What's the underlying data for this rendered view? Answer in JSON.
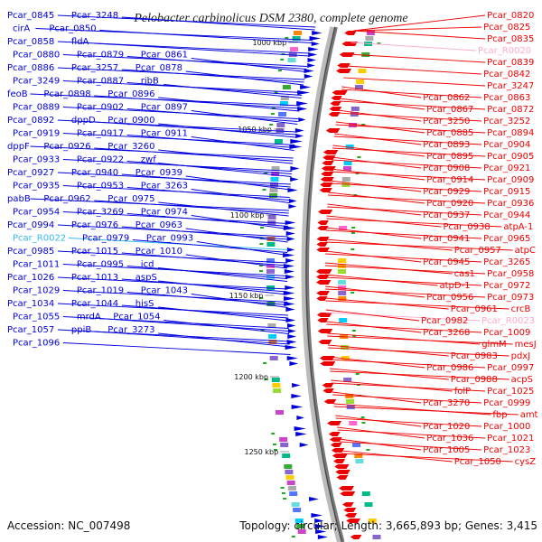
{
  "title": "Pelobacter carbinolicus DSM 2380, complete genome",
  "footer": {
    "accession": "Accession: NC_007498",
    "topology": "Topology: circular; Length: 3,665,893 bp; Genes: 3,415"
  },
  "kbp_marks": [
    "1000 kbp",
    "1050 kbp",
    "1100 kbp",
    "1150 kbp",
    "1200 kbp",
    "1250 kbp"
  ],
  "colors": {
    "forward": "#0000dd",
    "reverse": "#ee0000",
    "rna_fwd": "#33bbee",
    "rna_rev": "#ffaacc",
    "backbone": "#777777"
  },
  "left_labels": [
    "Pcar_0845",
    "Pcar_3248",
    "cirA",
    "Pcar_0850",
    "Pcar_0858",
    "fldA",
    "Pcar_0880",
    "Pcar_0879",
    "Pcar_0861",
    "Pcar_0886",
    "Pcar_3257",
    "Pcar_0878",
    "Pcar_3249",
    "Pcar_0887",
    "ribB",
    "feoB",
    "Pcar_0898",
    "Pcar_0896",
    "Pcar_0889",
    "Pcar_0902",
    "Pcar_0897",
    "Pcar_0892",
    "dppD",
    "Pcar_0900",
    "Pcar_0919",
    "Pcar_0917",
    "Pcar_0911",
    "dppF",
    "Pcar_0926",
    "Pcar_3260",
    "Pcar_0933",
    "Pcar_0922",
    "zwf",
    "Pcar_0927",
    "Pcar_0940",
    "Pcar_0939",
    "Pcar_0935",
    "Pcar_0953",
    "Pcar_3263",
    "pabB",
    "Pcar_0962",
    "Pcar_0975",
    "Pcar_0954",
    "Pcar_3269",
    "Pcar_0974",
    "Pcar_0994",
    "Pcar_0976",
    "Pcar_0963",
    "Pcar_R0022",
    "Pcar_0979",
    "Pcar_0993",
    "Pcar_0985",
    "Pcar_1015",
    "Pcar_1010",
    "Pcar_1011",
    "Pcar_0995",
    "icd",
    "Pcar_1026",
    "Pcar_1013",
    "aspS",
    "Pcar_1029",
    "Pcar_1019",
    "Pcar_1043",
    "Pcar_1034",
    "Pcar_1044",
    "hisS",
    "Pcar_1055",
    "mrdA",
    "Pcar_1054",
    "Pcar_1057",
    "ppiB",
    "Pcar_3273",
    "Pcar_1096"
  ],
  "right_labels": [
    "Pcar_0820",
    "Pcar_0825",
    "Pcar_0835",
    "Pcar_R0020",
    "Pcar_0839",
    "Pcar_0842",
    "Pcar_3247",
    "Pcar_0862",
    "Pcar_0863",
    "Pcar_0867",
    "Pcar_0872",
    "Pcar_3250",
    "Pcar_3252",
    "Pcar_0885",
    "Pcar_0894",
    "Pcar_0893",
    "Pcar_0904",
    "Pcar_0895",
    "Pcar_0905",
    "Pcar_0908",
    "Pcar_0921",
    "Pcar_0914",
    "Pcar_0909",
    "Pcar_0929",
    "Pcar_0915",
    "Pcar_0920",
    "Pcar_0936",
    "Pcar_0937",
    "Pcar_0944",
    "Pcar_0938",
    "atpA-1",
    "Pcar_0941",
    "Pcar_0965",
    "Pcar_0957",
    "atpC",
    "Pcar_0945",
    "Pcar_3265",
    "cas1",
    "Pcar_0958",
    "atpD-1",
    "Pcar_0972",
    "Pcar_0956",
    "Pcar_0973",
    "Pcar_0961",
    "crcB",
    "Pcar_0982",
    "Pcar_R0023",
    "Pcar_3268",
    "Pcar_1009",
    "glmM",
    "mesJ",
    "Pcar_0983",
    "pdxJ",
    "Pcar_0986",
    "Pcar_0997",
    "Pcar_0988",
    "acpS",
    "folP",
    "Pcar_1025",
    "Pcar_3270",
    "Pcar_0999",
    "fbp",
    "amt",
    "Pcar_1020",
    "Pcar_1000",
    "Pcar_1036",
    "Pcar_1021",
    "Pcar_1005",
    "Pcar_1023",
    "Pcar_1050",
    "cysZ"
  ]
}
